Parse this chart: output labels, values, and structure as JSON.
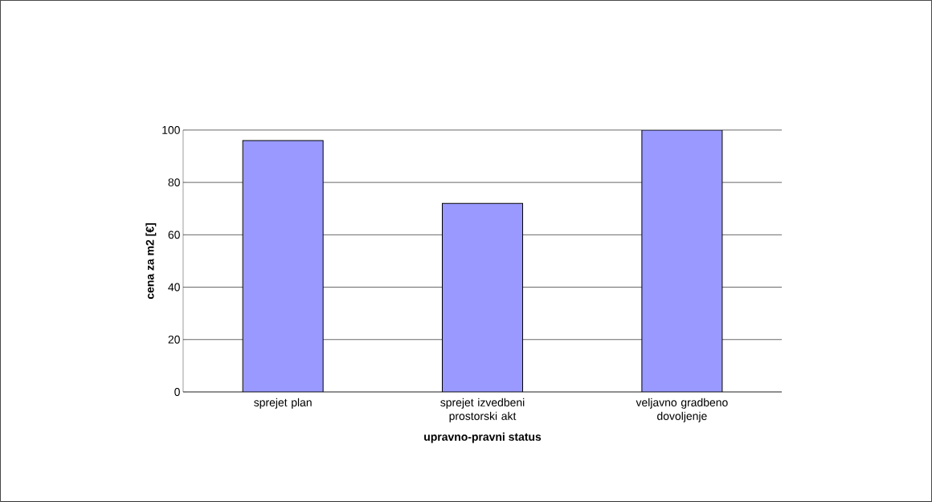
{
  "chart_data": {
    "type": "bar",
    "xlabel": "upravno-pravni status",
    "ylabel": "cena za m2 [€]",
    "categories": [
      "sprejet plan",
      "sprejet izvedbeni prostorski akt",
      "veljavno gradbeno dovoljenje"
    ],
    "values": [
      96,
      72,
      100
    ],
    "color": "#9999ff",
    "ylim": [
      0,
      100
    ],
    "yticks": [
      0,
      20,
      40,
      60,
      80,
      100
    ],
    "grid": "y"
  }
}
